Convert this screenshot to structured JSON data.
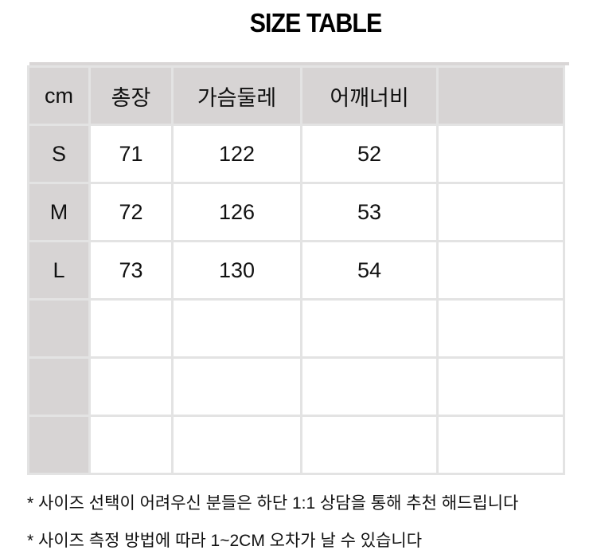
{
  "title": "SIZE TABLE",
  "table": {
    "headers": [
      "cm",
      "총장",
      "가슴둘레",
      "어깨너비",
      ""
    ],
    "rows": [
      [
        "S",
        "71",
        "122",
        "52",
        ""
      ],
      [
        "M",
        "72",
        "126",
        "53",
        ""
      ],
      [
        "L",
        "73",
        "130",
        "54",
        ""
      ],
      [
        "",
        "",
        "",
        "",
        ""
      ],
      [
        "",
        "",
        "",
        "",
        ""
      ],
      [
        "",
        "",
        "",
        "",
        ""
      ]
    ]
  },
  "notes": [
    "* 사이즈 선택이 어려우신 분들은 하단 1:1 상담을 통해 추천 해드립니다",
    "* 사이즈 측정 방법에 따라 1~2CM 오차가 날 수 있습니다"
  ],
  "colors": {
    "header_bg": "#d7d4d4",
    "grid": "#e3e3e3"
  }
}
